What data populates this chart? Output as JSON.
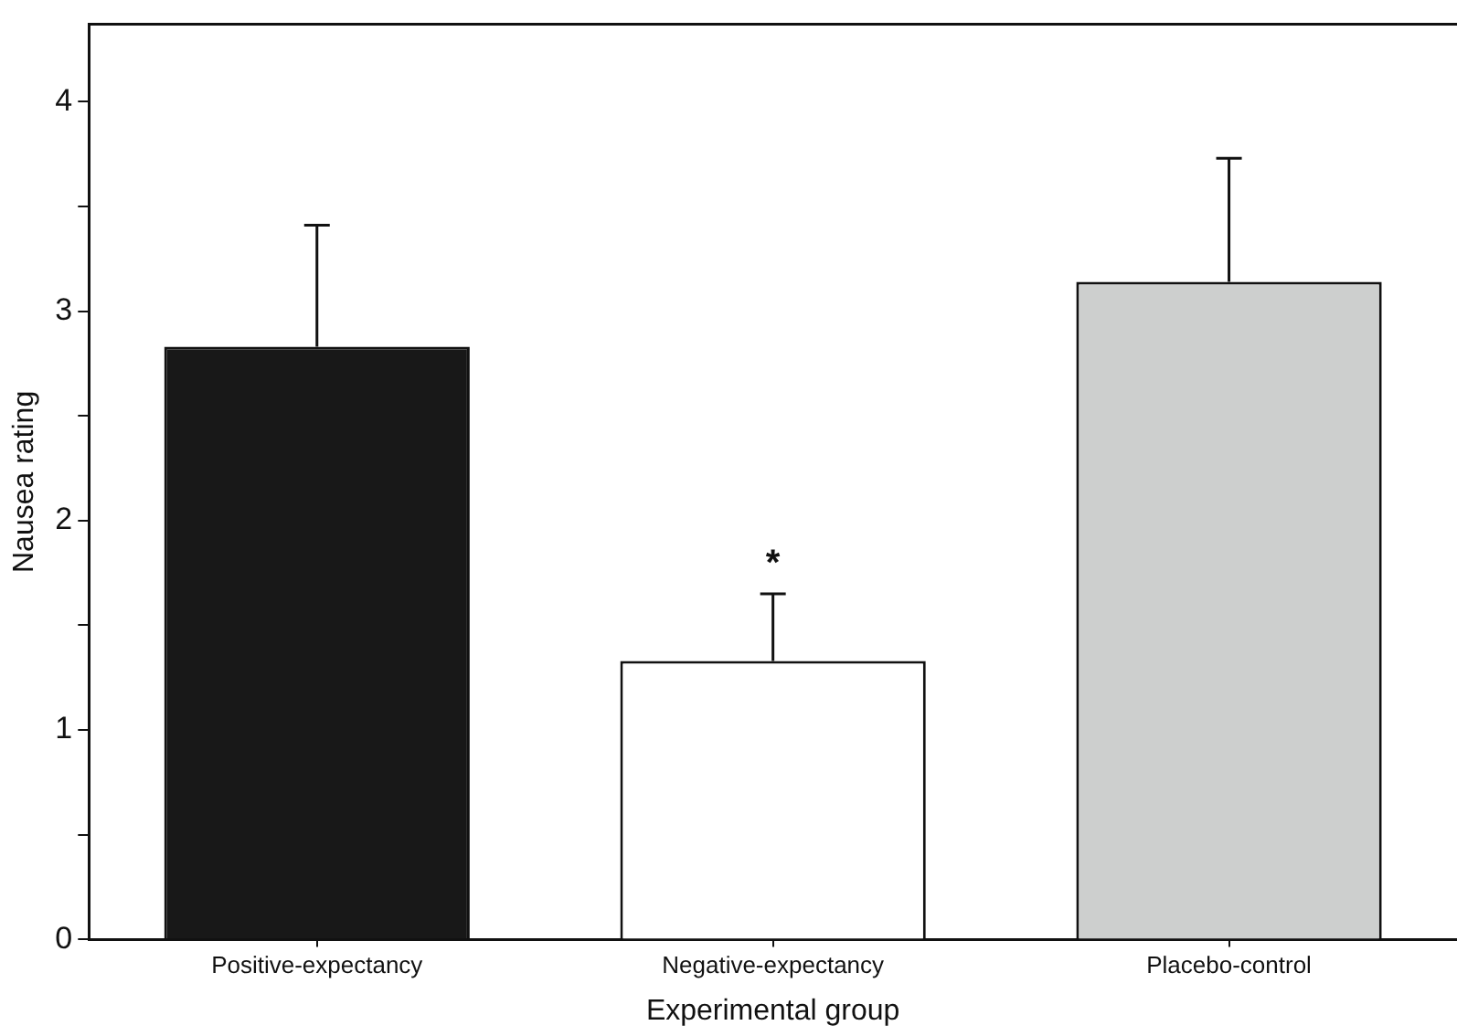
{
  "chart_data": {
    "type": "bar",
    "xlabel": "Experimental group",
    "ylabel": "Nausea rating",
    "categories": [
      "Positive-expectancy",
      "Negative-expectancy",
      "Placebo-control"
    ],
    "values": [
      2.83,
      1.33,
      3.14
    ],
    "colors": [
      "#181818",
      "#ffffff",
      "#cdcfce"
    ],
    "errors": [
      [
        2.83,
        3.41
      ],
      [
        1.33,
        1.65
      ],
      [
        3.14,
        3.73
      ]
    ],
    "ylim": [
      0,
      4.37
    ],
    "yticks": [
      0,
      {
        "value": 0.5,
        "label": null
      },
      1,
      {
        "value": 1.5,
        "label": null
      },
      2,
      {
        "value": 2.5,
        "label": null
      },
      3,
      {
        "value": 3.5,
        "label": null
      },
      4
    ],
    "annotations": [
      {
        "text": "*",
        "x": "Negative-expectancy",
        "y": 1.65
      }
    ],
    "grid": false,
    "legend": false
  }
}
